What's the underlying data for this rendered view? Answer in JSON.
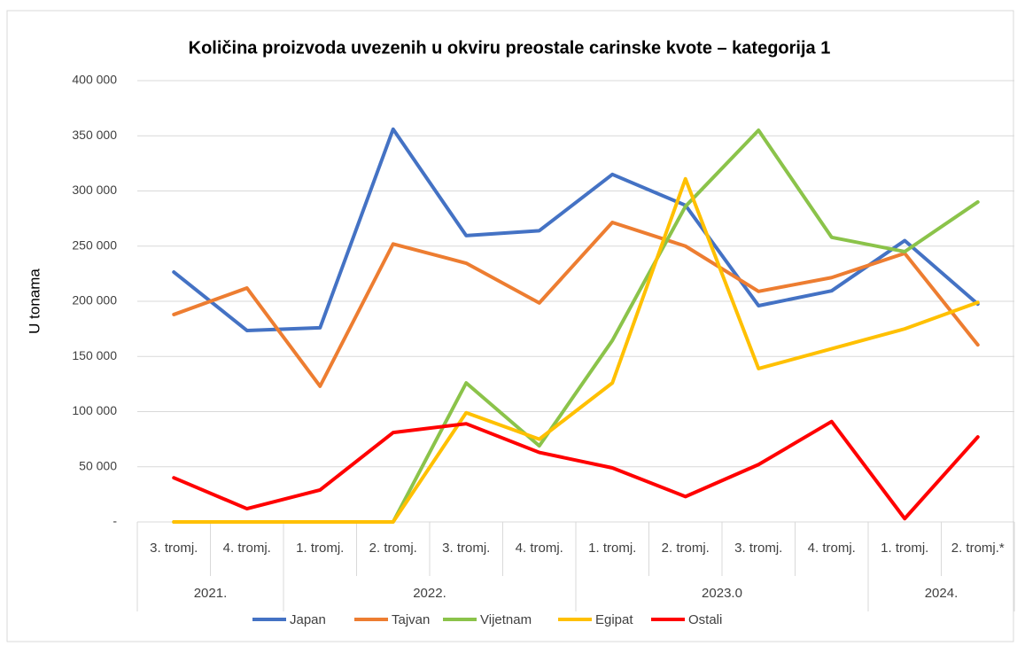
{
  "chart_data": {
    "type": "line",
    "title": "Količina proizvoda uvezenih u okviru preostale carinske kvote – kategorija 1",
    "y_label": "U tonama",
    "categories": [
      "3. tromj.",
      "4. tromj.",
      "1. tromj.",
      "2. tromj.",
      "3. tromj.",
      "4. tromj.",
      "1. tromj.",
      "2. tromj.",
      "3. tromj.",
      "4. tromj.",
      "1. tromj.",
      "2. tromj.*"
    ],
    "groups": [
      {
        "label": "2021.",
        "count": 2
      },
      {
        "label": "2022.",
        "count": 4
      },
      {
        "label": "2023.0",
        "count": 4
      },
      {
        "label": "2024.",
        "count": 2
      }
    ],
    "series": [
      {
        "name": "Japan",
        "color": "#4472c4",
        "values": [
          226500,
          173500,
          176000,
          356000,
          259500,
          264000,
          315000,
          287000,
          196000,
          209500,
          255000,
          197500
        ]
      },
      {
        "name": "Tajvan",
        "color": "#ed7d31",
        "values": [
          188000,
          212000,
          123000,
          252000,
          234500,
          198500,
          271500,
          250000,
          209000,
          221500,
          243500,
          160500
        ]
      },
      {
        "name": "Vijetnam",
        "color": "#8bc34a",
        "values": [
          0,
          0,
          0,
          0,
          126000,
          69000,
          164500,
          286000,
          355000,
          258000,
          245000,
          290000
        ]
      },
      {
        "name": "Egipat",
        "color": "#ffc000",
        "values": [
          0,
          0,
          0,
          0,
          99000,
          75000,
          126000,
          311000,
          139000,
          157000,
          175000,
          199000
        ]
      },
      {
        "name": "Ostali",
        "color": "#ff0000",
        "values": [
          40000,
          12000,
          29000,
          81000,
          89000,
          63000,
          49000,
          23000,
          52000,
          91000,
          3000,
          77000
        ]
      }
    ],
    "ylim": [
      0,
      400000
    ],
    "yticks": [
      {
        "value": 0,
        "label": "-"
      },
      {
        "value": 50000,
        "label": "50 000"
      },
      {
        "value": 100000,
        "label": "100 000"
      },
      {
        "value": 150000,
        "label": "150 000"
      },
      {
        "value": 200000,
        "label": "200 000"
      },
      {
        "value": 250000,
        "label": "250 000"
      },
      {
        "value": 300000,
        "label": "300 000"
      },
      {
        "value": 350000,
        "label": "350 000"
      },
      {
        "value": 400000,
        "label": "400 000"
      }
    ],
    "grid": true
  }
}
